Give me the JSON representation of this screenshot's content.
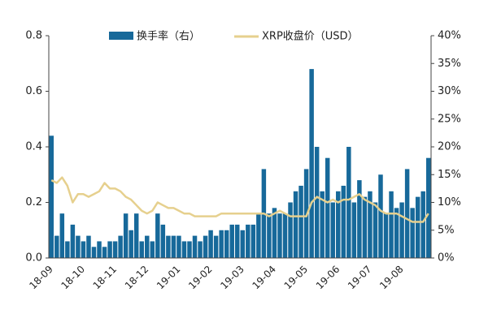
{
  "chart_data": {
    "type": "combo",
    "categories": [
      "18-09",
      null,
      null,
      null,
      null,
      null,
      "18-10",
      null,
      null,
      null,
      null,
      null,
      "18-11",
      null,
      null,
      null,
      null,
      null,
      "18-12",
      null,
      null,
      null,
      null,
      null,
      "19-01",
      null,
      null,
      null,
      null,
      null,
      "19-02",
      null,
      null,
      null,
      null,
      null,
      "19-03",
      null,
      null,
      null,
      null,
      null,
      "19-04",
      null,
      null,
      null,
      null,
      null,
      "19-05",
      null,
      null,
      null,
      null,
      null,
      "19-06",
      null,
      null,
      null,
      null,
      null,
      "19-07",
      null,
      null,
      null,
      null,
      null,
      "19-08",
      null,
      null,
      null,
      null,
      null
    ],
    "series": [
      {
        "name": "换手率（右）",
        "type": "bar",
        "axis": "y2",
        "color": "#17699a",
        "values": [
          22,
          4,
          8,
          3,
          6,
          4,
          3,
          4,
          2,
          3,
          2,
          3,
          3,
          4,
          8,
          5,
          8,
          3,
          4,
          3,
          8,
          6,
          4,
          4,
          4,
          3,
          3,
          4,
          3,
          4,
          5,
          4,
          5,
          5,
          6,
          6,
          5,
          6,
          6,
          8,
          16,
          8,
          9,
          8,
          8,
          10,
          12,
          13,
          16,
          34,
          20,
          12,
          18,
          10,
          12,
          13,
          20,
          10,
          14,
          11,
          12,
          10,
          15,
          8,
          12,
          9,
          10,
          16,
          9,
          11,
          12,
          18
        ]
      },
      {
        "name": "XRP收盘价（USD）",
        "type": "line",
        "color": "#e6d08e",
        "values": [
          0.28,
          0.27,
          0.29,
          0.26,
          0.2,
          0.23,
          0.23,
          0.22,
          0.23,
          0.24,
          0.27,
          0.25,
          0.25,
          0.24,
          0.22,
          0.21,
          0.19,
          0.17,
          0.16,
          0.17,
          0.2,
          0.19,
          0.18,
          0.18,
          0.17,
          0.16,
          0.16,
          0.15,
          0.15,
          0.15,
          0.15,
          0.15,
          0.16,
          0.16,
          0.16,
          0.16,
          0.16,
          0.16,
          0.16,
          0.16,
          0.16,
          0.15,
          0.16,
          0.17,
          0.16,
          0.15,
          0.15,
          0.15,
          0.15,
          0.2,
          0.22,
          0.21,
          0.2,
          0.21,
          0.2,
          0.21,
          0.21,
          0.22,
          0.23,
          0.21,
          0.2,
          0.19,
          0.17,
          0.16,
          0.16,
          0.16,
          0.15,
          0.14,
          0.13,
          0.13,
          0.13,
          0.16
        ]
      }
    ],
    "ylim": [
      0,
      0.8
    ],
    "yticks": [
      {
        "value": 0,
        "label": "0.0"
      },
      0.2,
      0.4,
      0.6,
      0.8
    ],
    "y2lim": [
      0,
      40
    ],
    "y2ticks": [
      {
        "value": 0,
        "label": "0%"
      },
      {
        "value": 5,
        "label": "5%"
      },
      {
        "value": 10,
        "label": "10%"
      },
      {
        "value": 15,
        "label": "15%"
      },
      {
        "value": 20,
        "label": "20%"
      },
      {
        "value": 25,
        "label": "25%"
      },
      {
        "value": 30,
        "label": "30%"
      },
      {
        "value": 35,
        "label": "35%"
      },
      {
        "value": 40,
        "label": "40%"
      }
    ]
  }
}
